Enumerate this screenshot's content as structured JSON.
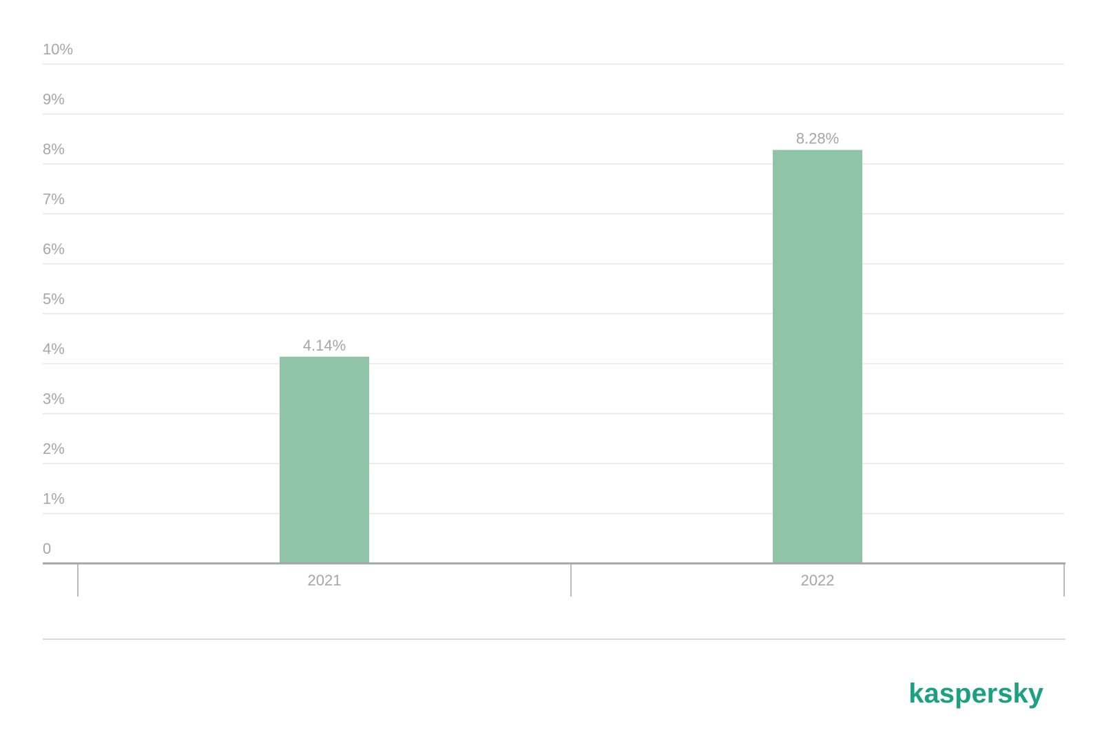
{
  "chart_data": {
    "type": "bar",
    "categories": [
      "2021",
      "2022"
    ],
    "values": [
      4.14,
      8.28
    ],
    "value_labels": [
      "4.14%",
      "8.28%"
    ],
    "color": "#8fc4a8",
    "ylim": [
      0,
      10
    ],
    "yticks": [
      0,
      {
        "value": 1,
        "label": "1%"
      },
      {
        "value": 2,
        "label": "2%"
      },
      {
        "value": 3,
        "label": "3%"
      },
      {
        "value": 4,
        "label": "4%"
      },
      {
        "value": 5,
        "label": "5%"
      },
      {
        "value": 6,
        "label": "6%"
      },
      {
        "value": 7,
        "label": "7%"
      },
      {
        "value": 8,
        "label": "8%"
      },
      {
        "value": 9,
        "label": "9%"
      },
      {
        "value": 10,
        "label": "10%"
      }
    ],
    "grid": true
  },
  "logo": "kaspersky"
}
